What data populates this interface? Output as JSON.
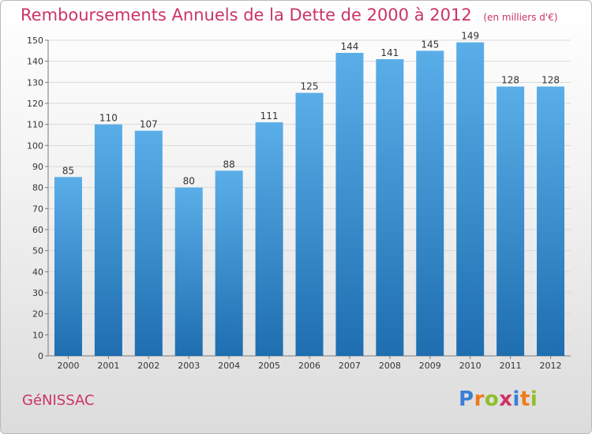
{
  "title": "Remboursements Annuels de la Dette de 2000 à 2012",
  "unit_note": "(en milliers d'€)",
  "place": "GéNISSAC",
  "logo": {
    "text": "Proxiti",
    "letter_colors": [
      "#3a7fd5",
      "#f07a1a",
      "#8fbf2a",
      "#cc3366",
      "#3a7fd5",
      "#f07a1a",
      "#8fbf2a"
    ]
  },
  "colors": {
    "title": "#cc3366",
    "bar_top": "#5aaee8",
    "bar_bottom": "#1e6eb0",
    "axis": "#7a7a7a",
    "grid": "#d9d9d9"
  },
  "chart_data": {
    "type": "bar",
    "categories": [
      "2000",
      "2001",
      "2002",
      "2003",
      "2004",
      "2005",
      "2006",
      "2007",
      "2008",
      "2009",
      "2010",
      "2011",
      "2012"
    ],
    "values": [
      85,
      110,
      107,
      80,
      88,
      111,
      125,
      144,
      141,
      145,
      149,
      128,
      128
    ],
    "ylim": [
      0,
      150
    ],
    "y_ticks": [
      0,
      10,
      20,
      30,
      40,
      50,
      60,
      70,
      80,
      90,
      100,
      110,
      120,
      130,
      140,
      150
    ],
    "grid": true,
    "show_data_labels": true
  }
}
